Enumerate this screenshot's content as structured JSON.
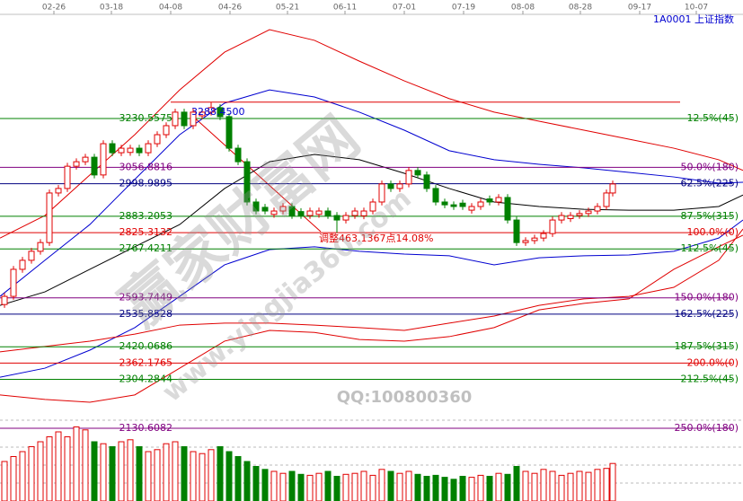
{
  "chart_data": {
    "type": "candlestick",
    "title": "1A0001 上证指数",
    "xlim": [
      0,
      82.7
    ],
    "ylim": [
      1872.4,
      3651.2
    ],
    "xticks": [
      {
        "value": 6.0,
        "label": "02-26"
      },
      {
        "value": 12.4,
        "label": "03-18"
      },
      {
        "value": 19.0,
        "label": "04-08"
      },
      {
        "value": 25.6,
        "label": "04-26"
      },
      {
        "value": 32.0,
        "label": "05-21"
      },
      {
        "value": 38.4,
        "label": "06-11"
      },
      {
        "value": 45.0,
        "label": "07-01"
      },
      {
        "value": 51.6,
        "label": "07-19"
      },
      {
        "value": 58.2,
        "label": "08-08"
      },
      {
        "value": 64.6,
        "label": "08-28"
      },
      {
        "value": 71.2,
        "label": "09-17"
      },
      {
        "value": 77.5,
        "label": "10-07"
      }
    ],
    "up_color": "#e00000",
    "down_color": "#008000",
    "candles": {
      "x": [
        0.5,
        1.5,
        2.5,
        3.5,
        4.5,
        5.5,
        6.5,
        7.5,
        8.5,
        9.5,
        10.5,
        11.5,
        12.5,
        13.5,
        14.5,
        15.5,
        16.5,
        17.5,
        18.5,
        19.5,
        20.5,
        21.5,
        22.5,
        23.5,
        24.5,
        25.5,
        26.5,
        27.5,
        28.5,
        29.5,
        30.5,
        31.5,
        32.5,
        33.5,
        34.5,
        35.5,
        36.5,
        37.5,
        38.5,
        39.5,
        40.5,
        41.5,
        42.5,
        43.5,
        44.5,
        45.5,
        46.5,
        47.5,
        48.5,
        49.5,
        50.5,
        51.5,
        52.5,
        53.5,
        54.5,
        55.5,
        56.5,
        57.5,
        58.5,
        59.5,
        60.5,
        61.5,
        62.5,
        63.5,
        64.5,
        65.5,
        66.5,
        67.5,
        68.2
      ],
      "open": [
        2570,
        2599,
        2695,
        2727,
        2759,
        2790,
        2966,
        2982,
        3061,
        3077,
        3093,
        3030,
        3141,
        3109,
        3110,
        3125,
        3109,
        3141,
        3173,
        3205,
        3253,
        3205,
        3240,
        3253,
        3269,
        3237,
        3125,
        3077,
        2934,
        2915,
        2890,
        2902,
        2918,
        2900,
        2886,
        2890,
        2902,
        2886,
        2870,
        2886,
        2885,
        2902,
        2934,
        2998,
        2982,
        2998,
        3046,
        3030,
        2982,
        2934,
        2924,
        2930,
        2905,
        2918,
        2945,
        2934,
        2950,
        2870,
        2790,
        2797,
        2806,
        2822,
        2870,
        2875,
        2886,
        2893,
        2902,
        2918,
        2966
      ],
      "high": [
        2611,
        2707,
        2739,
        2771,
        2802,
        2978,
        2994,
        3073,
        3089,
        3105,
        3105,
        3153,
        3153,
        3137,
        3137,
        3137,
        3153,
        3185,
        3217,
        3265,
        3265,
        3265,
        3265,
        3288,
        3281,
        3249,
        3137,
        3089,
        2946,
        2927,
        2914,
        2930,
        2930,
        2912,
        2914,
        2914,
        2914,
        2898,
        2898,
        2914,
        2914,
        2946,
        3010,
        3010,
        3010,
        3058,
        3058,
        3042,
        2994,
        2946,
        2936,
        2942,
        2930,
        2946,
        2957,
        2962,
        2962,
        2882,
        2809,
        2818,
        2834,
        2882,
        2898,
        2898,
        2905,
        2914,
        2930,
        2978,
        3010
      ],
      "low": [
        2558,
        2587,
        2683,
        2715,
        2747,
        2778,
        2954,
        2970,
        3049,
        3065,
        3018,
        3018,
        3097,
        3097,
        3098,
        3097,
        3097,
        3129,
        3161,
        3193,
        3193,
        3193,
        3228,
        3241,
        3225,
        3113,
        3065,
        2922,
        2890,
        2890,
        2878,
        2890,
        2874,
        2874,
        2874,
        2878,
        2874,
        2825,
        2858,
        2874,
        2873,
        2890,
        2922,
        2970,
        2970,
        2986,
        3018,
        2970,
        2922,
        2912,
        2906,
        2906,
        2893,
        2906,
        2922,
        2922,
        2858,
        2778,
        2778,
        2785,
        2794,
        2810,
        2858,
        2863,
        2874,
        2881,
        2890,
        2906,
        2954
      ],
      "close": [
        2599,
        2695,
        2727,
        2759,
        2790,
        2966,
        2982,
        3061,
        3077,
        3093,
        3030,
        3141,
        3109,
        3125,
        3125,
        3109,
        3141,
        3173,
        3205,
        3253,
        3205,
        3253,
        3253,
        3269,
        3237,
        3125,
        3077,
        2934,
        2902,
        2902,
        2902,
        2918,
        2886,
        2886,
        2902,
        2902,
        2886,
        2870,
        2886,
        2902,
        2902,
        2934,
        2998,
        2982,
        2998,
        3046,
        3030,
        2982,
        2934,
        2924,
        2918,
        2918,
        2918,
        2934,
        2934,
        2950,
        2870,
        2790,
        2797,
        2806,
        2822,
        2870,
        2886,
        2886,
        2893,
        2902,
        2918,
        2966,
        2998
      ]
    },
    "volume": {
      "ylim": [
        0,
        100
      ],
      "values": [
        40,
        45,
        50,
        55,
        60,
        65,
        70,
        65,
        75,
        72,
        60,
        58,
        55,
        60,
        62,
        55,
        50,
        52,
        58,
        60,
        55,
        50,
        48,
        52,
        55,
        50,
        45,
        40,
        35,
        32,
        30,
        28,
        30,
        27,
        26,
        28,
        30,
        25,
        27,
        28,
        30,
        26,
        32,
        30,
        28,
        30,
        27,
        25,
        26,
        24,
        22,
        25,
        24,
        26,
        25,
        28,
        27,
        35,
        30,
        28,
        32,
        30,
        26,
        28,
        30,
        29,
        32,
        33,
        38
      ]
    },
    "line_x": [
      0,
      5,
      10,
      15,
      20,
      25,
      30,
      35,
      40,
      45,
      50,
      55,
      60,
      65,
      70,
      75,
      80,
      82.7
    ],
    "lines": [
      {
        "color": "#e00000",
        "values": [
          2806,
          2886,
          3030,
          3173,
          3332,
          3466,
          3546,
          3508,
          3434,
          3364,
          3301,
          3253,
          3221,
          3189,
          3157,
          3125,
          3084,
          3046
        ]
      },
      {
        "color": "#0000d0",
        "values": [
          2599,
          2727,
          2854,
          3014,
          3173,
          3285,
          3332,
          3307,
          3253,
          3189,
          3116,
          3084,
          3068,
          3055,
          3039,
          3023,
          3001,
          3004
        ]
      },
      {
        "color": "#000000",
        "values": [
          2567,
          2615,
          2695,
          2775,
          2854,
          2982,
          3077,
          3103,
          3084,
          3036,
          2982,
          2934,
          2918,
          2908,
          2905,
          2905,
          2918,
          2959
        ]
      },
      {
        "color": "#0000d0",
        "values": [
          2312,
          2344,
          2408,
          2488,
          2599,
          2711,
          2765,
          2775,
          2759,
          2749,
          2743,
          2711,
          2736,
          2743,
          2746,
          2759,
          2806,
          2870
        ]
      },
      {
        "color": "#e00000",
        "values": [
          2402,
          2421,
          2440,
          2465,
          2497,
          2504,
          2504,
          2497,
          2488,
          2478,
          2504,
          2529,
          2567,
          2590,
          2599,
          2631,
          2727,
          2838
        ]
      },
      {
        "color": "#e00000",
        "values": [
          2249,
          2233,
          2223,
          2249,
          2344,
          2440,
          2478,
          2471,
          2446,
          2440,
          2456,
          2488,
          2551,
          2574,
          2590,
          2695,
          2775,
          2816
        ]
      }
    ],
    "levels": [
      {
        "value": 3230.5575,
        "ratio": "12.5%(45)",
        "color": "#008000"
      },
      {
        "value": 3056.8816,
        "ratio": "50.0%(180)",
        "color": "#800080"
      },
      {
        "value": 2998.9895,
        "ratio": "62.5%(225)",
        "color": "#000080"
      },
      {
        "value": 2883.2053,
        "ratio": "87.5%(315)",
        "color": "#008000"
      },
      {
        "value": 2825.3132,
        "ratio": "100.0%(0)",
        "color": "#e00000"
      },
      {
        "value": 2767.4211,
        "ratio": "112.5%(45)",
        "color": "#008000"
      },
      {
        "value": 2593.7449,
        "ratio": "150.0%(180)",
        "color": "#800080"
      },
      {
        "value": 2535.8528,
        "ratio": "162.5%(225)",
        "color": "#000080"
      },
      {
        "value": 2420.0686,
        "ratio": "187.5%(315)",
        "color": "#008000"
      },
      {
        "value": 2362.1765,
        "ratio": "200.0%(0)",
        "color": "#e00000"
      },
      {
        "value": 2304.2844,
        "ratio": "212.5%(45)",
        "color": "#008000"
      },
      {
        "value": 2130.6082,
        "ratio": "250.0%(180)",
        "color": "#800080"
      }
    ],
    "high": {
      "value": 3288.45,
      "label": "3288.4500"
    },
    "adjust_note": "调整463.1367点14.08%",
    "watermarks": [
      "赢家财富网",
      "www.yingjia360.com",
      "QQ:100800360"
    ]
  }
}
